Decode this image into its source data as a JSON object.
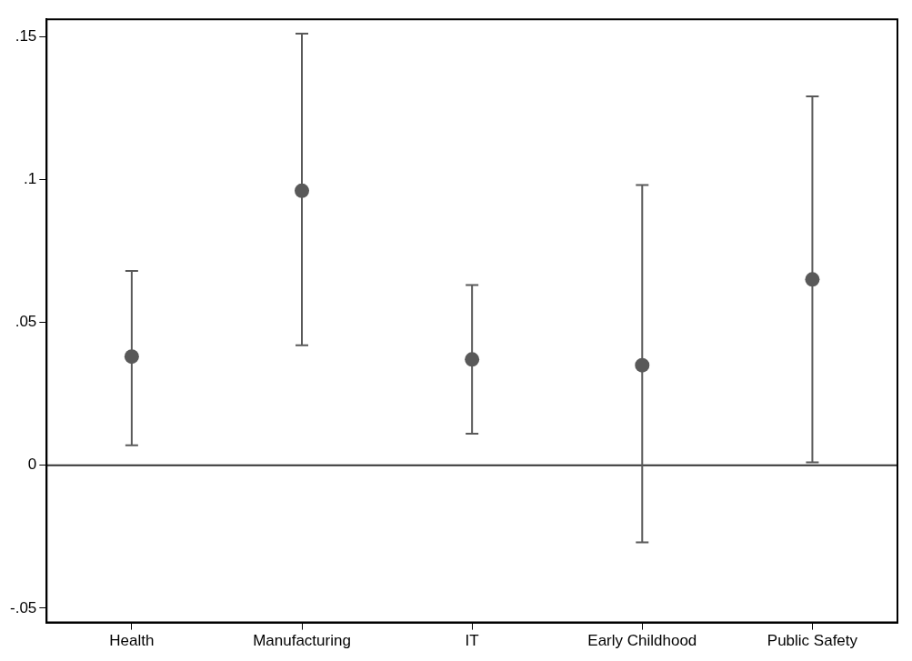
{
  "chart_data": {
    "type": "scatter",
    "categories": [
      "Health",
      "Manufacturing",
      "IT",
      "Early Childhood",
      "Public Safety"
    ],
    "series": [
      {
        "color": "#595959",
        "values": [
          0.038,
          0.096,
          0.037,
          0.035,
          0.065
        ],
        "errors": [
          [
            0.007,
            0.068
          ],
          [
            0.042,
            0.151
          ],
          [
            0.011,
            0.063
          ],
          [
            -0.027,
            0.098
          ],
          [
            0.001,
            0.129
          ]
        ]
      }
    ],
    "ylim": [
      -0.055,
      0.156
    ],
    "yticks": [
      {
        "value": -0.05,
        "label": "-.05"
      },
      {
        "value": 0,
        "label": "0"
      },
      {
        "value": 0.05,
        "label": ".05"
      },
      {
        "value": 0.1,
        "label": ".1"
      },
      {
        "value": 0.15,
        "label": ".15"
      }
    ],
    "ref_lines": [
      {
        "axis": "y",
        "value": 0,
        "color": "#333333"
      }
    ],
    "marker": "circle",
    "legend": false
  }
}
